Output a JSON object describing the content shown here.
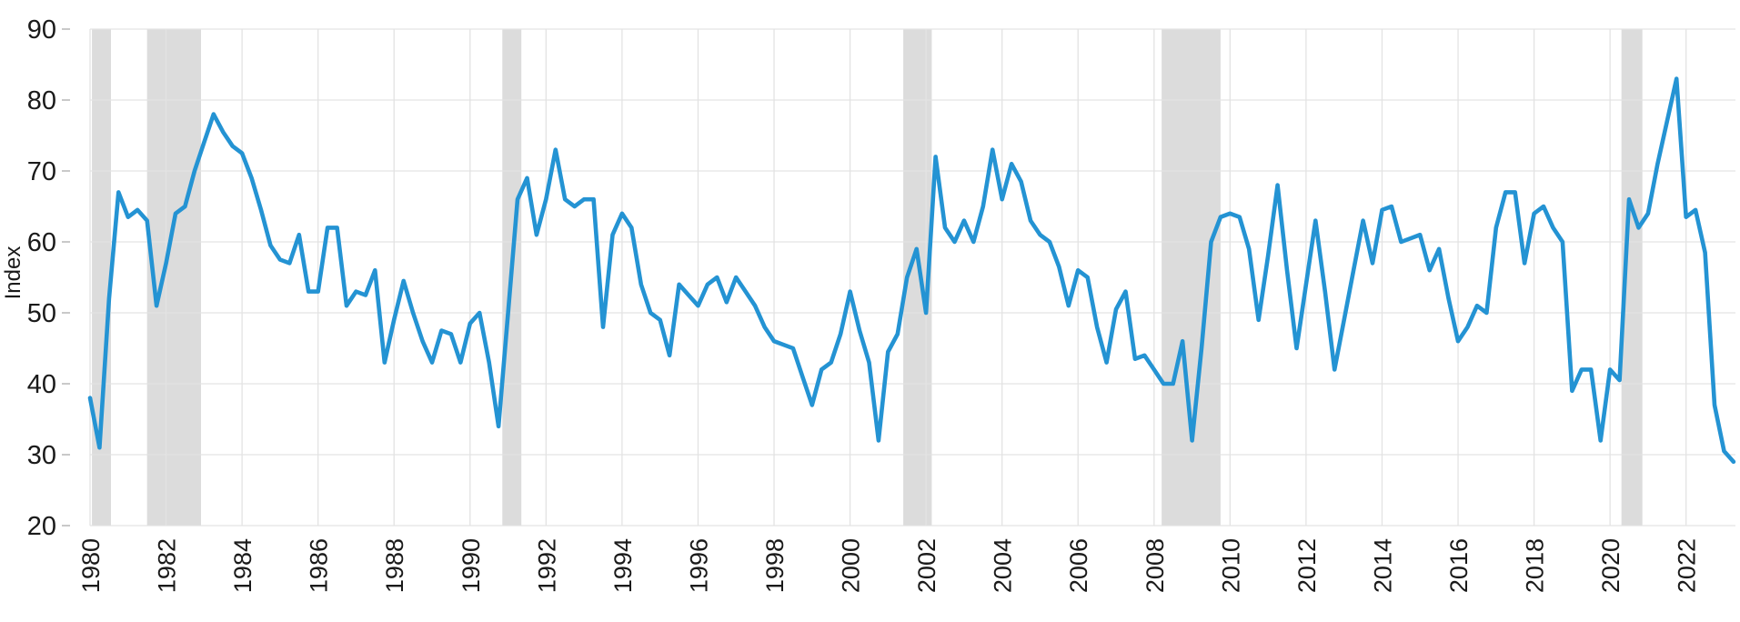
{
  "chart_data": {
    "type": "line",
    "title": "",
    "xlabel": "",
    "ylabel": "Index",
    "ylim": [
      20,
      90
    ],
    "yticks": [
      20,
      30,
      40,
      50,
      60,
      70,
      80,
      90
    ],
    "xticks": [
      1980,
      1982,
      1984,
      1986,
      1988,
      1990,
      1992,
      1994,
      1996,
      1998,
      2000,
      2002,
      2004,
      2006,
      2008,
      2010,
      2012,
      2014,
      2016,
      2018,
      2020,
      2022
    ],
    "xlim": [
      1980,
      2023.3
    ],
    "grid": true,
    "legend": "none",
    "frequency": "quarterly",
    "x_start": 1980,
    "x_step": 0.25,
    "series": [
      {
        "name": "Index",
        "color": "#2493d3",
        "values": [
          38,
          31,
          52,
          67,
          63.5,
          64.5,
          63,
          51,
          57,
          64,
          65,
          70,
          74,
          78,
          75.5,
          73.5,
          72.5,
          69,
          64.5,
          59.5,
          57.5,
          57,
          61,
          53,
          53,
          62,
          62,
          51,
          53,
          52.5,
          56,
          43,
          49,
          54.5,
          50,
          46,
          43,
          47.5,
          47,
          43,
          48.5,
          50,
          43,
          34,
          50,
          66,
          69,
          61,
          66,
          73,
          66,
          65,
          66,
          66,
          48,
          61,
          64,
          62,
          54,
          50,
          49,
          44,
          54,
          52.5,
          51,
          54,
          55,
          51.5,
          55,
          53,
          51,
          48,
          46,
          45.5,
          45,
          41,
          37,
          42,
          43,
          47,
          53,
          47.5,
          43,
          32,
          44.5,
          47,
          55,
          59,
          50,
          72,
          62,
          60,
          63,
          60,
          65,
          73,
          66,
          71,
          68.5,
          63,
          61,
          60,
          56.5,
          51,
          56,
          55,
          48,
          43,
          50.5,
          53,
          43.5,
          44,
          42,
          40,
          40,
          46,
          32,
          45,
          60,
          63.5,
          64,
          63.5,
          59,
          49,
          58,
          68,
          56,
          45,
          54,
          63,
          53,
          42,
          49,
          56,
          63,
          57,
          64.5,
          65,
          60,
          60.5,
          61,
          56,
          59,
          52,
          46,
          48,
          51,
          50,
          62,
          67,
          67,
          57,
          64,
          65,
          62,
          60,
          39,
          42,
          42,
          32,
          42,
          40.5,
          66,
          62,
          64,
          71,
          77,
          83,
          63.5,
          64.5,
          58.5,
          37,
          30.5,
          29
        ]
      }
    ],
    "recession_bands": [
      [
        1980.05,
        1980.55
      ],
      [
        1981.5,
        1982.92
      ],
      [
        1990.85,
        1991.35
      ],
      [
        2001.4,
        2002.15
      ],
      [
        2008.2,
        2009.75
      ],
      [
        2020.3,
        2020.85
      ]
    ],
    "colors": {
      "line": "#2493d3",
      "band": "#dcdcdc",
      "grid": "#e3e3e3",
      "tick": "#c9c9c9",
      "text": "#1a1a1a",
      "background": "#ffffff"
    }
  }
}
